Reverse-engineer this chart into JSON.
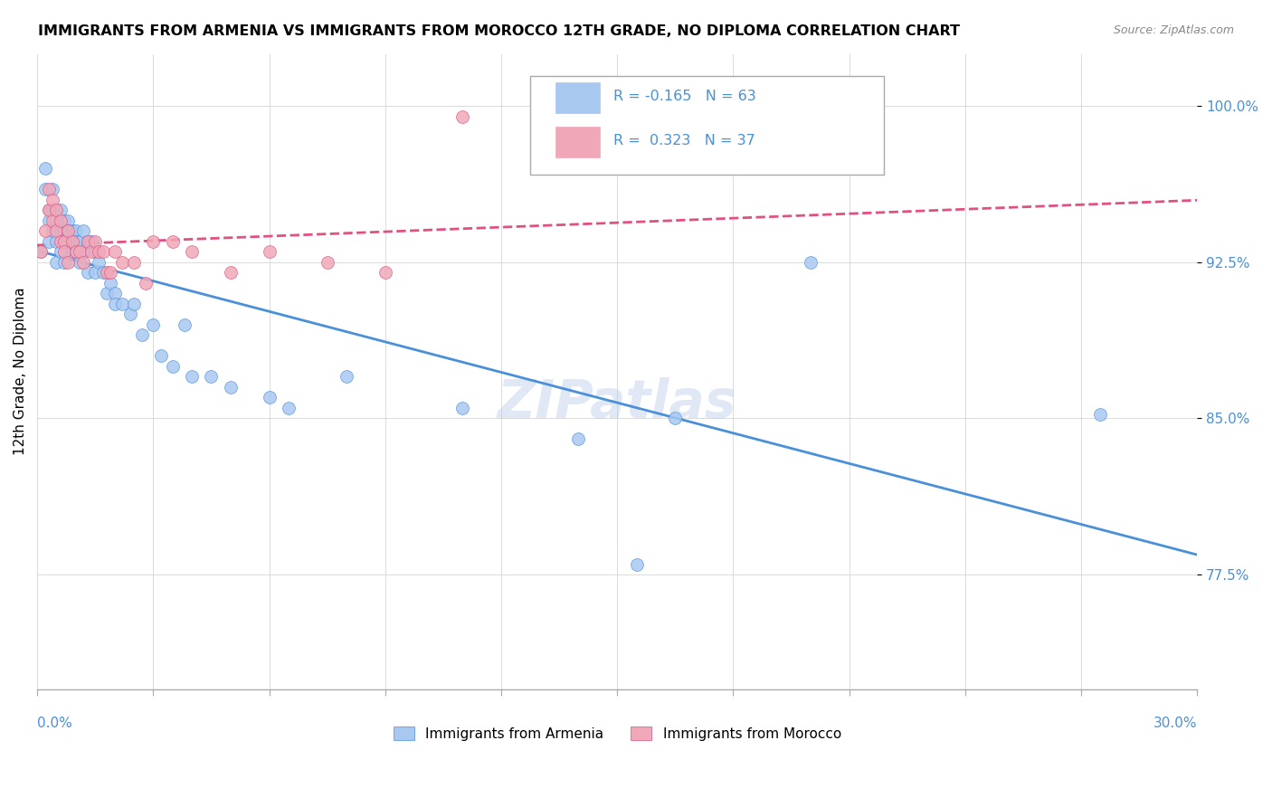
{
  "title": "IMMIGRANTS FROM ARMENIA VS IMMIGRANTS FROM MOROCCO 12TH GRADE, NO DIPLOMA CORRELATION CHART",
  "source": "Source: ZipAtlas.com",
  "ylabel": "12th Grade, No Diploma",
  "xmin": 0.0,
  "xmax": 0.3,
  "ymin": 0.72,
  "ymax": 1.025,
  "legend_armenia": "Immigrants from Armenia",
  "legend_morocco": "Immigrants from Morocco",
  "R_armenia": -0.165,
  "N_armenia": 63,
  "R_morocco": 0.323,
  "N_morocco": 37,
  "color_armenia": "#a8c8f0",
  "color_morocco": "#f0a8b8",
  "line_color_armenia": "#4a90d9",
  "line_color_morocco": "#e05080",
  "armenia_x": [
    0.001,
    0.002,
    0.002,
    0.003,
    0.003,
    0.003,
    0.004,
    0.004,
    0.004,
    0.005,
    0.005,
    0.005,
    0.005,
    0.006,
    0.006,
    0.006,
    0.007,
    0.007,
    0.007,
    0.007,
    0.008,
    0.008,
    0.008,
    0.009,
    0.009,
    0.01,
    0.01,
    0.01,
    0.011,
    0.011,
    0.012,
    0.012,
    0.013,
    0.013,
    0.014,
    0.015,
    0.015,
    0.016,
    0.017,
    0.018,
    0.019,
    0.02,
    0.02,
    0.022,
    0.024,
    0.025,
    0.027,
    0.03,
    0.032,
    0.035,
    0.038,
    0.04,
    0.045,
    0.05,
    0.06,
    0.065,
    0.08,
    0.11,
    0.14,
    0.155,
    0.165,
    0.2,
    0.275
  ],
  "armenia_y": [
    0.93,
    0.96,
    0.97,
    0.95,
    0.945,
    0.935,
    0.96,
    0.95,
    0.94,
    0.95,
    0.945,
    0.935,
    0.925,
    0.95,
    0.94,
    0.93,
    0.945,
    0.94,
    0.935,
    0.925,
    0.945,
    0.94,
    0.935,
    0.94,
    0.93,
    0.94,
    0.935,
    0.93,
    0.935,
    0.925,
    0.94,
    0.93,
    0.935,
    0.92,
    0.935,
    0.93,
    0.92,
    0.925,
    0.92,
    0.91,
    0.915,
    0.91,
    0.905,
    0.905,
    0.9,
    0.905,
    0.89,
    0.895,
    0.88,
    0.875,
    0.895,
    0.87,
    0.87,
    0.865,
    0.86,
    0.855,
    0.87,
    0.855,
    0.84,
    0.78,
    0.85,
    0.925,
    0.852
  ],
  "morocco_x": [
    0.001,
    0.002,
    0.003,
    0.003,
    0.004,
    0.004,
    0.005,
    0.005,
    0.006,
    0.006,
    0.007,
    0.007,
    0.008,
    0.008,
    0.009,
    0.01,
    0.011,
    0.012,
    0.013,
    0.014,
    0.015,
    0.016,
    0.017,
    0.018,
    0.019,
    0.02,
    0.022,
    0.025,
    0.028,
    0.03,
    0.035,
    0.04,
    0.05,
    0.06,
    0.075,
    0.09,
    0.11
  ],
  "morocco_y": [
    0.93,
    0.94,
    0.96,
    0.95,
    0.955,
    0.945,
    0.95,
    0.94,
    0.945,
    0.935,
    0.935,
    0.93,
    0.94,
    0.925,
    0.935,
    0.93,
    0.93,
    0.925,
    0.935,
    0.93,
    0.935,
    0.93,
    0.93,
    0.92,
    0.92,
    0.93,
    0.925,
    0.925,
    0.915,
    0.935,
    0.935,
    0.93,
    0.92,
    0.93,
    0.925,
    0.92,
    0.995
  ]
}
